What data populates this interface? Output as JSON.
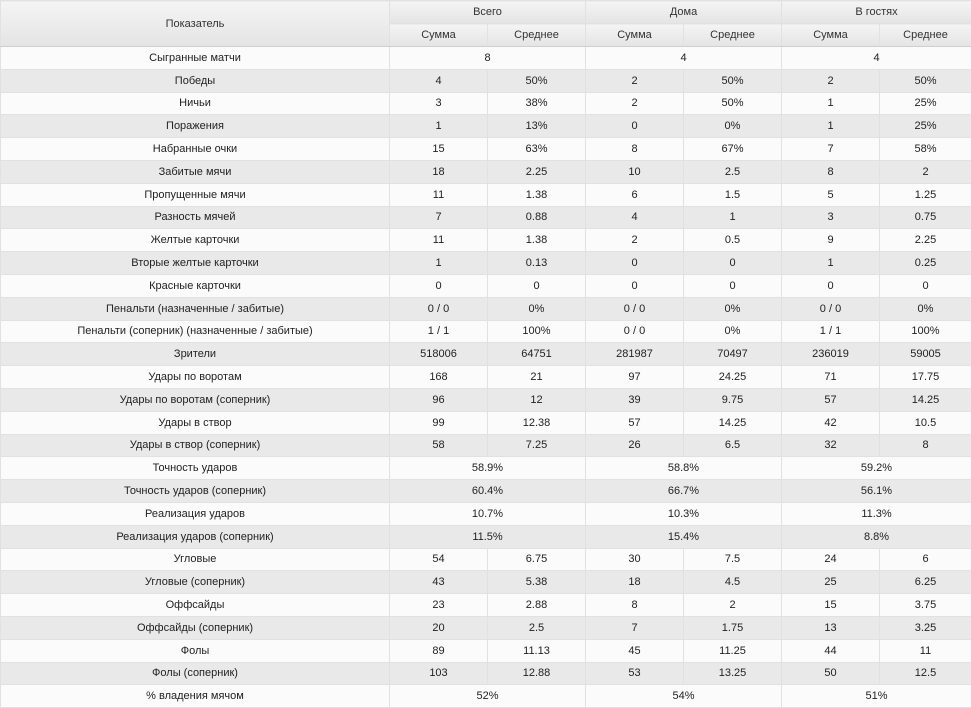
{
  "header": {
    "metric": "Показатель",
    "groups": [
      "Всего",
      "Дома",
      "В гостях"
    ],
    "sub": [
      "Сумма",
      "Среднее"
    ]
  },
  "rows": [
    {
      "label": "Сыгранные матчи",
      "merged": true,
      "cells": [
        "8",
        "4",
        "4"
      ]
    },
    {
      "label": "Победы",
      "cells": [
        "4",
        "50%",
        "2",
        "50%",
        "2",
        "50%"
      ]
    },
    {
      "label": "Ничьи",
      "cells": [
        "3",
        "38%",
        "2",
        "50%",
        "1",
        "25%"
      ]
    },
    {
      "label": "Поражения",
      "cells": [
        "1",
        "13%",
        "0",
        "0%",
        "1",
        "25%"
      ]
    },
    {
      "label": "Набранные очки",
      "cells": [
        "15",
        "63%",
        "8",
        "67%",
        "7",
        "58%"
      ]
    },
    {
      "label": "Забитые мячи",
      "cells": [
        "18",
        "2.25",
        "10",
        "2.5",
        "8",
        "2"
      ]
    },
    {
      "label": "Пропущенные мячи",
      "cells": [
        "11",
        "1.38",
        "6",
        "1.5",
        "5",
        "1.25"
      ]
    },
    {
      "label": "Разность мячей",
      "cells": [
        "7",
        "0.88",
        "4",
        "1",
        "3",
        "0.75"
      ]
    },
    {
      "label": "Желтые карточки",
      "cells": [
        "11",
        "1.38",
        "2",
        "0.5",
        "9",
        "2.25"
      ]
    },
    {
      "label": "Вторые желтые карточки",
      "cells": [
        "1",
        "0.13",
        "0",
        "0",
        "1",
        "0.25"
      ]
    },
    {
      "label": "Красные карточки",
      "cells": [
        "0",
        "0",
        "0",
        "0",
        "0",
        "0"
      ]
    },
    {
      "label": "Пенальти (назначенные / забитые)",
      "cells": [
        "0 / 0",
        "0%",
        "0 / 0",
        "0%",
        "0 / 0",
        "0%"
      ]
    },
    {
      "label": "Пенальти (соперник) (назначенные / забитые)",
      "cells": [
        "1 / 1",
        "100%",
        "0 / 0",
        "0%",
        "1 / 1",
        "100%"
      ]
    },
    {
      "label": "Зрители",
      "cells": [
        "518006",
        "64751",
        "281987",
        "70497",
        "236019",
        "59005"
      ]
    },
    {
      "label": "Удары по воротам",
      "cells": [
        "168",
        "21",
        "97",
        "24.25",
        "71",
        "17.75"
      ]
    },
    {
      "label": "Удары по воротам (соперник)",
      "cells": [
        "96",
        "12",
        "39",
        "9.75",
        "57",
        "14.25"
      ]
    },
    {
      "label": "Удары в створ",
      "cells": [
        "99",
        "12.38",
        "57",
        "14.25",
        "42",
        "10.5"
      ]
    },
    {
      "label": "Удары в створ (соперник)",
      "cells": [
        "58",
        "7.25",
        "26",
        "6.5",
        "32",
        "8"
      ]
    },
    {
      "label": "Точность ударов",
      "merged": true,
      "cells": [
        "58.9%",
        "58.8%",
        "59.2%"
      ]
    },
    {
      "label": "Точность ударов (соперник)",
      "merged": true,
      "cells": [
        "60.4%",
        "66.7%",
        "56.1%"
      ]
    },
    {
      "label": "Реализация ударов",
      "merged": true,
      "cells": [
        "10.7%",
        "10.3%",
        "11.3%"
      ]
    },
    {
      "label": "Реализация ударов (соперник)",
      "merged": true,
      "cells": [
        "11.5%",
        "15.4%",
        "8.8%"
      ]
    },
    {
      "label": "Угловые",
      "cells": [
        "54",
        "6.75",
        "30",
        "7.5",
        "24",
        "6"
      ]
    },
    {
      "label": "Угловые (соперник)",
      "cells": [
        "43",
        "5.38",
        "18",
        "4.5",
        "25",
        "6.25"
      ]
    },
    {
      "label": "Оффсайды",
      "cells": [
        "23",
        "2.88",
        "8",
        "2",
        "15",
        "3.75"
      ]
    },
    {
      "label": "Оффсайды (соперник)",
      "cells": [
        "20",
        "2.5",
        "7",
        "1.75",
        "13",
        "3.25"
      ]
    },
    {
      "label": "Фолы",
      "cells": [
        "89",
        "11.13",
        "45",
        "11.25",
        "44",
        "11"
      ]
    },
    {
      "label": "Фолы (соперник)",
      "cells": [
        "103",
        "12.88",
        "53",
        "13.25",
        "50",
        "12.5"
      ]
    },
    {
      "label": "% владения мячом",
      "merged": true,
      "cells": [
        "52%",
        "54%",
        "51%"
      ]
    }
  ]
}
